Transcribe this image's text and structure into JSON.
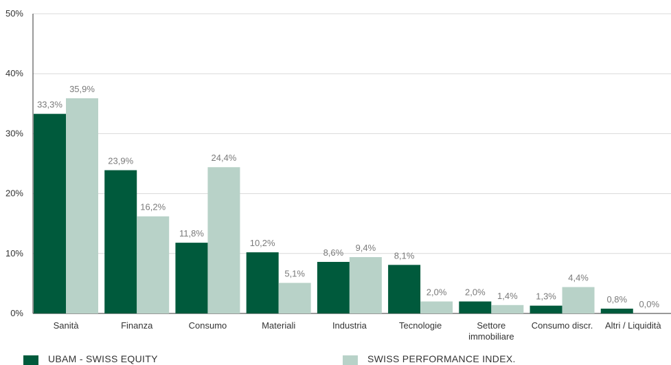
{
  "chart_data": {
    "type": "bar",
    "categories": [
      "Sanità",
      "Finanza",
      "Consumo",
      "Materiali",
      "Industria",
      "Tecnologie",
      "Settore\nimmobiliare",
      "Consumo discr.",
      "Altri / Liquidità"
    ],
    "series": [
      {
        "name": "UBAM - SWISS EQUITY",
        "color": "#005a3c",
        "values": [
          33.3,
          23.9,
          11.8,
          10.2,
          8.6,
          8.1,
          2.0,
          1.3,
          0.8
        ],
        "labels": [
          "33,3%",
          "23,9%",
          "11,8%",
          "10,2%",
          "8,6%",
          "8,1%",
          "2,0%",
          "1,3%",
          "0,8%"
        ]
      },
      {
        "name": "SWISS PERFORMANCE INDEX.",
        "color": "#b8d2c8",
        "values": [
          35.9,
          16.2,
          24.4,
          5.1,
          9.4,
          2.0,
          1.4,
          4.4,
          0.0
        ],
        "labels": [
          "35,9%",
          "16,2%",
          "24,4%",
          "5,1%",
          "9,4%",
          "2,0%",
          "1,4%",
          "4,4%",
          "0,0%"
        ]
      }
    ],
    "ylim": [
      0,
      50
    ],
    "yticks": [
      0,
      10,
      20,
      30,
      40,
      50
    ],
    "ytick_labels": [
      "0%",
      "10%",
      "20%",
      "30%",
      "40%",
      "50%"
    ],
    "grid": true,
    "legend": "bottom"
  },
  "legend": {
    "series_a": "UBAM - SWISS EQUITY",
    "series_b": "SWISS PERFORMANCE INDEX."
  }
}
